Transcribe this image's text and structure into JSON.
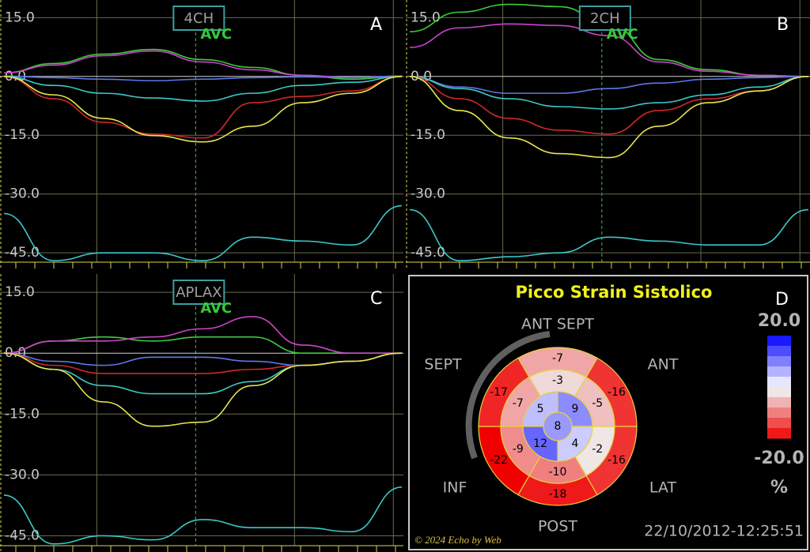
{
  "chart_data": [
    {
      "type": "line",
      "view": "4CH",
      "panel": "A",
      "annotation": "AVC",
      "ylim": [
        -49,
        19.5
      ],
      "yticks": [
        {
          "value": 15,
          "label": "15.0"
        },
        {
          "value": 0,
          "label": "0.0"
        },
        {
          "value": -15,
          "label": "-15.0"
        },
        {
          "value": -30,
          "label": "-30.0"
        },
        {
          "value": -45,
          "label": "-45.0"
        }
      ],
      "series": [
        {
          "color": "#3ccc3c",
          "values": [
            0.9,
            3.3,
            5.7,
            6.9,
            4.3,
            2.3,
            0.3,
            -0.7,
            0.1
          ]
        },
        {
          "color": "#cc44cc",
          "values": [
            0.9,
            2.9,
            5.3,
            6.5,
            3.7,
            1.7,
            0.3,
            -0.3,
            0.1
          ]
        },
        {
          "color": "#5a78e6",
          "values": [
            0.1,
            -0.3,
            -0.7,
            -1.1,
            -0.7,
            -0.3,
            -0.1,
            -0.3,
            0.1
          ]
        },
        {
          "color": "#3cc8c8",
          "values": [
            0,
            -2.3,
            -4.3,
            -5.5,
            -6.3,
            -4.3,
            -2.3,
            -1.5,
            0
          ]
        },
        {
          "color": "#d02828",
          "values": [
            0,
            -5.7,
            -11.7,
            -14.7,
            -15.7,
            -6.7,
            -5.1,
            -3.7,
            0
          ]
        },
        {
          "color": "#e6e650",
          "values": [
            0,
            -4.7,
            -10.7,
            -15.1,
            -16.7,
            -12.7,
            -6.7,
            -4.3,
            0
          ]
        },
        {
          "color": "#3cc8c8",
          "values": [
            -35,
            -47,
            -45,
            -45,
            -47,
            -41,
            -42,
            -43,
            -33
          ]
        }
      ]
    },
    {
      "type": "line",
      "view": "2CH",
      "panel": "B",
      "annotation": "AVC",
      "ylim": [
        -49,
        19.5
      ],
      "yticks": [
        {
          "value": 15,
          "label": "15.0"
        },
        {
          "value": 0,
          "label": "0.0"
        },
        {
          "value": -15,
          "label": "-15.0"
        },
        {
          "value": -30,
          "label": "-30.0"
        },
        {
          "value": -45,
          "label": "-45.0"
        }
      ],
      "series": [
        {
          "color": "#3ccc3c",
          "values": [
            11.4,
            16.4,
            18.4,
            17.8,
            13.4,
            4.3,
            1.7,
            0.3,
            0
          ]
        },
        {
          "color": "#cc44cc",
          "values": [
            7.4,
            12.4,
            13.4,
            13,
            10.4,
            3.7,
            1.3,
            0.3,
            0
          ]
        },
        {
          "color": "#5a78e6",
          "values": [
            0,
            -2.7,
            -4.3,
            -4.3,
            -3.1,
            -1.7,
            -0.7,
            -0.3,
            0
          ]
        },
        {
          "color": "#3cc8c8",
          "values": [
            0,
            -3.1,
            -5.7,
            -7.7,
            -8.3,
            -6.7,
            -4.7,
            -2.7,
            0
          ]
        },
        {
          "color": "#d02828",
          "values": [
            0,
            -5.7,
            -10.7,
            -13.7,
            -14.7,
            -8.7,
            -5.7,
            -3.7,
            0
          ]
        },
        {
          "color": "#e6e650",
          "values": [
            0,
            -8.7,
            -15.7,
            -19.7,
            -20.7,
            -12.7,
            -6.7,
            -3.7,
            0
          ]
        },
        {
          "color": "#3cc8c8",
          "values": [
            -34,
            -47,
            -46,
            -45,
            -41,
            -42,
            -43,
            -43,
            -34
          ]
        }
      ]
    },
    {
      "type": "line",
      "view": "APLAX",
      "panel": "C",
      "annotation": "AVC",
      "ylim": [
        -49,
        19.5
      ],
      "yticks": [
        {
          "value": 15,
          "label": "15.0"
        },
        {
          "value": 0,
          "label": "0.0"
        },
        {
          "value": -15,
          "label": "-15.0"
        },
        {
          "value": -30,
          "label": "-30.0"
        },
        {
          "value": -45,
          "label": "-45.0"
        }
      ],
      "series": [
        {
          "color": "#3ccc3c",
          "values": [
            0,
            3,
            4,
            3,
            4,
            4,
            0,
            0,
            0
          ]
        },
        {
          "color": "#cc44cc",
          "values": [
            0,
            3,
            3,
            4,
            6,
            9,
            2,
            0,
            0
          ]
        },
        {
          "color": "#5a78e6",
          "values": [
            0,
            -2,
            -3,
            -1,
            -1,
            -2,
            -3,
            -2,
            0
          ]
        },
        {
          "color": "#3cc8c8",
          "values": [
            0,
            -4,
            -8,
            -10,
            -10,
            -7,
            -3,
            -2,
            0
          ]
        },
        {
          "color": "#d02828",
          "values": [
            0,
            -3,
            -5,
            -5,
            -5,
            -4,
            -3,
            -2,
            0
          ]
        },
        {
          "color": "#e6e650",
          "values": [
            0,
            -4,
            -12,
            -18,
            -17,
            -8,
            -3,
            -2,
            0
          ]
        },
        {
          "color": "#3cc8c8",
          "values": [
            -35,
            -47,
            -45,
            -46,
            -41,
            -43,
            -43,
            -44,
            -33
          ]
        }
      ]
    },
    {
      "type": "bullseye",
      "title": "Picco Strain Sistolico",
      "panel": "D",
      "walls": [
        "ANT_SEPT",
        "ANT",
        "LAT",
        "POST",
        "INF",
        "SEPT"
      ],
      "basal": [
        -7,
        -16,
        -16,
        -18,
        -22,
        -17
      ],
      "mid": [
        -3,
        -5,
        -2,
        -10,
        -9,
        -7
      ],
      "apical": [
        5,
        9,
        4,
        12
      ],
      "apex": 8,
      "clim": [
        -20,
        20
      ],
      "cticks": [
        {
          "value": 20,
          "label": "20.0"
        },
        {
          "value": -20,
          "label": "-20.0"
        }
      ],
      "unit": "%",
      "timestamp": "22/10/2012-12:25:51"
    }
  ],
  "footer": "© 2024 Echo by Web"
}
